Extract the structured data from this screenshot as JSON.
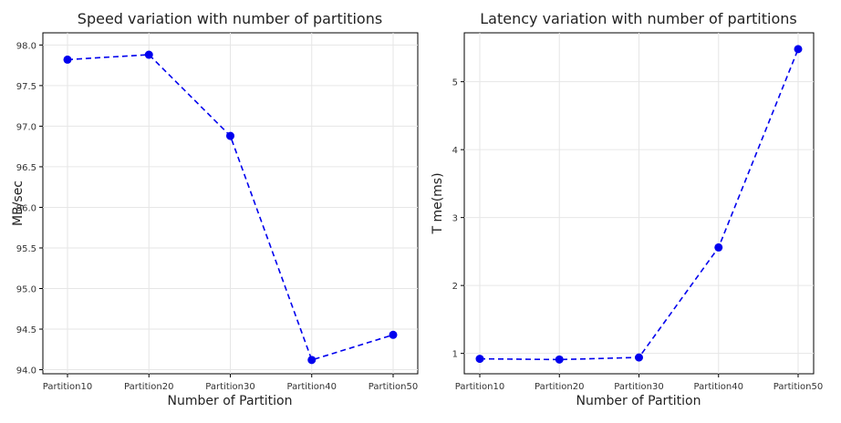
{
  "chart_data": [
    {
      "type": "line",
      "title": "Speed variation with number of partitions",
      "xlabel": "Number of Partition",
      "ylabel": "MB/sec",
      "categories": [
        "Partition10",
        "Partition20",
        "Partition30",
        "Partition40",
        "Partition50"
      ],
      "series": [
        {
          "values": [
            97.82,
            97.88,
            96.88,
            94.12,
            94.43
          ]
        }
      ],
      "yticks": [
        "94.0",
        "94.5",
        "95.0",
        "95.5",
        "96.0",
        "96.5",
        "97.0",
        "97.5",
        "98.0"
      ],
      "ylim": [
        93.95,
        98.15
      ],
      "grid": true,
      "line_color": "#0000ee",
      "line_style": "dashed",
      "marker": "circle"
    },
    {
      "type": "line",
      "title": "Latency variation with number of partitions",
      "xlabel": "Number of Partition",
      "ylabel": "T me(ms)",
      "categories": [
        "Partition10",
        "Partition20",
        "Partition30",
        "Partition40",
        "Partition50"
      ],
      "series": [
        {
          "values": [
            0.92,
            0.91,
            0.94,
            2.56,
            5.48
          ]
        }
      ],
      "yticks": [
        "1",
        "2",
        "3",
        "4",
        "5"
      ],
      "ylim": [
        0.7,
        5.72
      ],
      "grid": true,
      "line_color": "#0000ee",
      "line_style": "dashed",
      "marker": "circle"
    }
  ]
}
